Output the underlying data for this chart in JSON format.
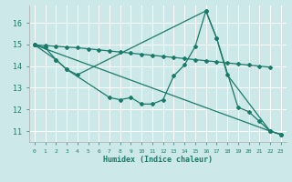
{
  "xlabel": "Humidex (Indice chaleur)",
  "bg_color": "#cce8e8",
  "grid_color": "#ffffff",
  "line_color": "#1a7a6a",
  "xlim": [
    -0.5,
    23.5
  ],
  "ylim": [
    10.5,
    16.8
  ],
  "yticks": [
    11,
    12,
    13,
    14,
    15,
    16
  ],
  "xticks": [
    0,
    1,
    2,
    3,
    4,
    5,
    6,
    7,
    8,
    9,
    10,
    11,
    12,
    13,
    14,
    15,
    16,
    17,
    18,
    19,
    20,
    21,
    22,
    23
  ],
  "lines": [
    {
      "x": [
        0,
        1,
        2,
        3,
        4,
        5,
        6,
        7,
        8,
        9,
        10,
        11,
        12,
        13,
        14,
        15,
        16,
        17,
        18,
        19,
        20,
        21,
        22
      ],
      "y": [
        14.98,
        14.95,
        14.92,
        14.88,
        14.85,
        14.8,
        14.75,
        14.7,
        14.65,
        14.6,
        14.55,
        14.5,
        14.45,
        14.4,
        14.35,
        14.3,
        14.25,
        14.2,
        14.15,
        14.1,
        14.05,
        14.0,
        13.95
      ]
    },
    {
      "x": [
        0,
        2,
        3,
        7,
        8,
        9,
        10,
        11,
        12,
        13,
        14,
        15,
        16,
        17,
        19,
        20,
        21,
        22,
        23
      ],
      "y": [
        14.98,
        14.3,
        13.85,
        12.55,
        12.45,
        12.55,
        12.25,
        12.25,
        12.45,
        13.55,
        14.05,
        14.9,
        16.55,
        15.3,
        12.1,
        11.9,
        11.45,
        11.0,
        10.85
      ]
    },
    {
      "x": [
        0,
        22,
        23
      ],
      "y": [
        14.98,
        11.0,
        10.85
      ]
    },
    {
      "x": [
        0,
        1,
        2,
        3,
        4,
        16,
        17,
        18,
        22,
        23
      ],
      "y": [
        14.98,
        14.85,
        14.3,
        13.85,
        13.6,
        16.55,
        15.3,
        13.6,
        11.0,
        10.85
      ]
    }
  ]
}
